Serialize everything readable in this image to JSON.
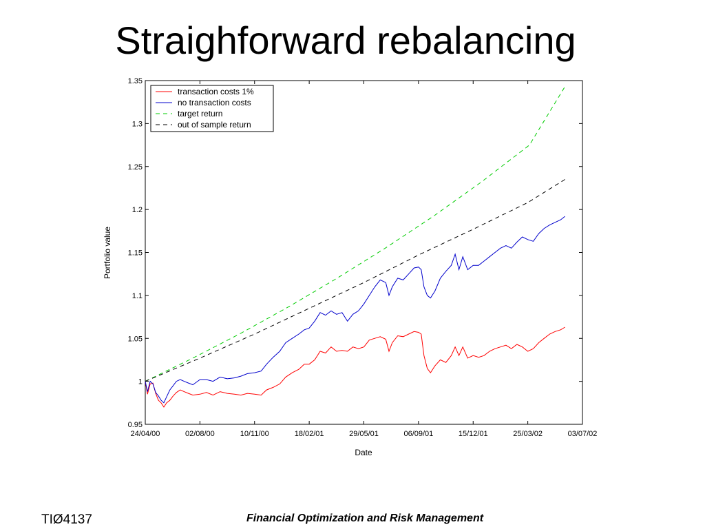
{
  "slide": {
    "title": "Straighforward rebalancing",
    "footer_left": "TIØ4137",
    "footer_center": "Financial Optimization and Risk Management"
  },
  "chart_data": {
    "type": "line",
    "xlabel": "Date",
    "ylabel": "Portfolio value",
    "ylim": [
      0.95,
      1.35
    ],
    "yticks": [
      0.95,
      1,
      1.05,
      1.1,
      1.15,
      1.2,
      1.25,
      1.3,
      1.35
    ],
    "ytick_labels": [
      "0.95",
      "1",
      "1.05",
      "1.1",
      "1.15",
      "1.2",
      "1.25",
      "1.3",
      "1.35"
    ],
    "xlim": [
      "2000-04-24",
      "2002-07-03"
    ],
    "xticks": [
      "2000-04-24",
      "2000-08-02",
      "2000-11-10",
      "2001-02-18",
      "2001-05-29",
      "2001-09-06",
      "2001-12-15",
      "2002-03-25",
      "2002-07-03"
    ],
    "xtick_labels": [
      "24/04/00",
      "02/08/00",
      "10/11/00",
      "18/02/01",
      "29/05/01",
      "06/09/01",
      "15/12/01",
      "25/03/02",
      "03/07/02"
    ],
    "grid": false,
    "legend_position": "top-left",
    "series": [
      {
        "name": "transaction costs 1%",
        "color": "#ff0000",
        "style": "solid",
        "points": [
          [
            "2000-04-24",
            1.0
          ],
          [
            "2000-04-28",
            0.985
          ],
          [
            "2000-05-03",
            0.997
          ],
          [
            "2000-05-08",
            0.998
          ],
          [
            "2000-05-13",
            0.986
          ],
          [
            "2000-05-18",
            0.978
          ],
          [
            "2000-05-23",
            0.975
          ],
          [
            "2000-05-28",
            0.97
          ],
          [
            "2000-06-02",
            0.975
          ],
          [
            "2000-06-08",
            0.978
          ],
          [
            "2000-06-14",
            0.983
          ],
          [
            "2000-06-20",
            0.987
          ],
          [
            "2000-06-27",
            0.99
          ],
          [
            "2000-07-04",
            0.988
          ],
          [
            "2000-07-12",
            0.986
          ],
          [
            "2000-07-20",
            0.984
          ],
          [
            "2000-08-02",
            0.985
          ],
          [
            "2000-08-14",
            0.987
          ],
          [
            "2000-08-26",
            0.984
          ],
          [
            "2000-09-08",
            0.988
          ],
          [
            "2000-09-21",
            0.986
          ],
          [
            "2000-10-04",
            0.985
          ],
          [
            "2000-10-16",
            0.984
          ],
          [
            "2000-10-28",
            0.986
          ],
          [
            "2000-11-10",
            0.985
          ],
          [
            "2000-11-22",
            0.984
          ],
          [
            "2000-12-02",
            0.99
          ],
          [
            "2000-12-14",
            0.993
          ],
          [
            "2000-12-26",
            0.997
          ],
          [
            "2001-01-06",
            1.005
          ],
          [
            "2001-01-18",
            1.01
          ],
          [
            "2001-01-30",
            1.014
          ],
          [
            "2001-02-09",
            1.02
          ],
          [
            "2001-02-18",
            1.02
          ],
          [
            "2001-02-28",
            1.025
          ],
          [
            "2001-03-10",
            1.035
          ],
          [
            "2001-03-20",
            1.033
          ],
          [
            "2001-03-30",
            1.04
          ],
          [
            "2001-04-09",
            1.035
          ],
          [
            "2001-04-19",
            1.036
          ],
          [
            "2001-04-29",
            1.035
          ],
          [
            "2001-05-09",
            1.04
          ],
          [
            "2001-05-19",
            1.038
          ],
          [
            "2001-05-29",
            1.04
          ],
          [
            "2001-06-08",
            1.048
          ],
          [
            "2001-06-18",
            1.05
          ],
          [
            "2001-06-28",
            1.052
          ],
          [
            "2001-07-08",
            1.049
          ],
          [
            "2001-07-14",
            1.035
          ],
          [
            "2001-07-20",
            1.045
          ],
          [
            "2001-07-30",
            1.053
          ],
          [
            "2001-08-09",
            1.052
          ],
          [
            "2001-08-19",
            1.055
          ],
          [
            "2001-08-29",
            1.058
          ],
          [
            "2001-09-06",
            1.057
          ],
          [
            "2001-09-11",
            1.055
          ],
          [
            "2001-09-16",
            1.03
          ],
          [
            "2001-09-22",
            1.015
          ],
          [
            "2001-09-28",
            1.01
          ],
          [
            "2001-10-06",
            1.018
          ],
          [
            "2001-10-16",
            1.025
          ],
          [
            "2001-10-26",
            1.022
          ],
          [
            "2001-11-05",
            1.03
          ],
          [
            "2001-11-12",
            1.04
          ],
          [
            "2001-11-19",
            1.03
          ],
          [
            "2001-11-26",
            1.04
          ],
          [
            "2001-12-05",
            1.027
          ],
          [
            "2001-12-15",
            1.03
          ],
          [
            "2001-12-25",
            1.028
          ],
          [
            "2002-01-04",
            1.03
          ],
          [
            "2002-01-14",
            1.035
          ],
          [
            "2002-01-24",
            1.038
          ],
          [
            "2002-02-03",
            1.04
          ],
          [
            "2002-02-13",
            1.042
          ],
          [
            "2002-02-23",
            1.038
          ],
          [
            "2002-03-05",
            1.043
          ],
          [
            "2002-03-15",
            1.04
          ],
          [
            "2002-03-25",
            1.035
          ],
          [
            "2002-04-04",
            1.038
          ],
          [
            "2002-04-14",
            1.045
          ],
          [
            "2002-04-24",
            1.05
          ],
          [
            "2002-05-04",
            1.055
          ],
          [
            "2002-05-14",
            1.058
          ],
          [
            "2002-05-24",
            1.06
          ],
          [
            "2002-06-01",
            1.063
          ]
        ]
      },
      {
        "name": "no transaction costs",
        "color": "#0000cc",
        "style": "solid",
        "points": [
          [
            "2000-04-24",
            1.0
          ],
          [
            "2000-04-28",
            0.988
          ],
          [
            "2000-05-03",
            1.0
          ],
          [
            "2000-05-08",
            0.997
          ],
          [
            "2000-05-13",
            0.987
          ],
          [
            "2000-05-18",
            0.983
          ],
          [
            "2000-05-23",
            0.978
          ],
          [
            "2000-05-28",
            0.975
          ],
          [
            "2000-06-02",
            0.982
          ],
          [
            "2000-06-08",
            0.99
          ],
          [
            "2000-06-14",
            0.995
          ],
          [
            "2000-06-20",
            1.0
          ],
          [
            "2000-06-27",
            1.002
          ],
          [
            "2000-07-04",
            1.0
          ],
          [
            "2000-07-12",
            0.998
          ],
          [
            "2000-07-20",
            0.996
          ],
          [
            "2000-08-02",
            1.002
          ],
          [
            "2000-08-14",
            1.002
          ],
          [
            "2000-08-26",
            1.0
          ],
          [
            "2000-09-08",
            1.005
          ],
          [
            "2000-09-21",
            1.003
          ],
          [
            "2000-10-04",
            1.004
          ],
          [
            "2000-10-16",
            1.006
          ],
          [
            "2000-10-28",
            1.009
          ],
          [
            "2000-11-10",
            1.01
          ],
          [
            "2000-11-22",
            1.012
          ],
          [
            "2000-12-02",
            1.02
          ],
          [
            "2000-12-14",
            1.028
          ],
          [
            "2000-12-26",
            1.035
          ],
          [
            "2001-01-06",
            1.045
          ],
          [
            "2001-01-18",
            1.05
          ],
          [
            "2001-01-30",
            1.055
          ],
          [
            "2001-02-09",
            1.06
          ],
          [
            "2001-02-18",
            1.062
          ],
          [
            "2001-02-28",
            1.07
          ],
          [
            "2001-03-10",
            1.08
          ],
          [
            "2001-03-20",
            1.077
          ],
          [
            "2001-03-30",
            1.082
          ],
          [
            "2001-04-09",
            1.078
          ],
          [
            "2001-04-19",
            1.08
          ],
          [
            "2001-04-29",
            1.07
          ],
          [
            "2001-05-09",
            1.078
          ],
          [
            "2001-05-19",
            1.082
          ],
          [
            "2001-05-29",
            1.09
          ],
          [
            "2001-06-08",
            1.1
          ],
          [
            "2001-06-18",
            1.11
          ],
          [
            "2001-06-28",
            1.118
          ],
          [
            "2001-07-08",
            1.115
          ],
          [
            "2001-07-14",
            1.1
          ],
          [
            "2001-07-20",
            1.11
          ],
          [
            "2001-07-30",
            1.12
          ],
          [
            "2001-08-09",
            1.118
          ],
          [
            "2001-08-19",
            1.125
          ],
          [
            "2001-08-29",
            1.132
          ],
          [
            "2001-09-06",
            1.133
          ],
          [
            "2001-09-11",
            1.13
          ],
          [
            "2001-09-16",
            1.11
          ],
          [
            "2001-09-22",
            1.1
          ],
          [
            "2001-09-28",
            1.097
          ],
          [
            "2001-10-06",
            1.105
          ],
          [
            "2001-10-16",
            1.12
          ],
          [
            "2001-10-26",
            1.128
          ],
          [
            "2001-11-05",
            1.135
          ],
          [
            "2001-11-12",
            1.148
          ],
          [
            "2001-11-19",
            1.13
          ],
          [
            "2001-11-26",
            1.145
          ],
          [
            "2001-12-05",
            1.13
          ],
          [
            "2001-12-15",
            1.135
          ],
          [
            "2001-12-25",
            1.135
          ],
          [
            "2002-01-04",
            1.14
          ],
          [
            "2002-01-14",
            1.145
          ],
          [
            "2002-01-24",
            1.15
          ],
          [
            "2002-02-03",
            1.155
          ],
          [
            "2002-02-13",
            1.158
          ],
          [
            "2002-02-23",
            1.155
          ],
          [
            "2002-03-05",
            1.162
          ],
          [
            "2002-03-15",
            1.168
          ],
          [
            "2002-03-25",
            1.165
          ],
          [
            "2002-04-04",
            1.163
          ],
          [
            "2002-04-14",
            1.172
          ],
          [
            "2002-04-24",
            1.178
          ],
          [
            "2002-05-04",
            1.182
          ],
          [
            "2002-05-14",
            1.185
          ],
          [
            "2002-05-24",
            1.188
          ],
          [
            "2002-06-01",
            1.192
          ]
        ]
      },
      {
        "name": "target return",
        "color": "#00cc00",
        "style": "dashed",
        "points": [
          [
            "2000-04-24",
            1.0
          ],
          [
            "2000-07-20",
            1.027
          ],
          [
            "2000-10-16",
            1.056
          ],
          [
            "2001-01-12",
            1.087
          ],
          [
            "2001-04-10",
            1.12
          ],
          [
            "2001-07-07",
            1.155
          ],
          [
            "2001-10-03",
            1.192
          ],
          [
            "2001-12-30",
            1.232
          ],
          [
            "2002-03-28",
            1.275
          ],
          [
            "2002-06-01",
            1.343
          ]
        ]
      },
      {
        "name": "out of sample return",
        "color": "#000000",
        "style": "dashed",
        "points": [
          [
            "2000-04-24",
            1.0
          ],
          [
            "2000-08-02",
            1.027
          ],
          [
            "2000-11-10",
            1.055
          ],
          [
            "2001-02-18",
            1.085
          ],
          [
            "2001-05-29",
            1.115
          ],
          [
            "2001-09-06",
            1.147
          ],
          [
            "2001-12-15",
            1.177
          ],
          [
            "2002-03-25",
            1.208
          ],
          [
            "2002-06-01",
            1.235
          ]
        ]
      }
    ]
  }
}
